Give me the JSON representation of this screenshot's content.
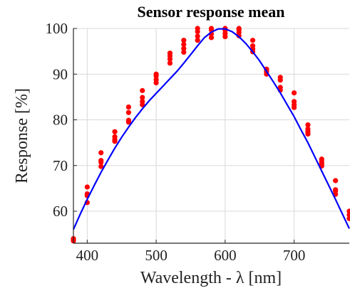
{
  "chart_data": {
    "type": "scatter",
    "title": "Sensor response mean",
    "xlabel": "Wavelength - λ [nm]",
    "ylabel": "Response [%]",
    "xlim": [
      380,
      780
    ],
    "ylim": [
      53,
      100
    ],
    "x_ticks": [
      400,
      500,
      600,
      700
    ],
    "y_ticks": [
      60,
      70,
      80,
      90,
      100
    ],
    "grid": true,
    "colors": {
      "points": "#ff0000",
      "fit": "#0000ff",
      "grid": "#d9d9d9",
      "axis": "#262626"
    },
    "series": [
      {
        "type": "scatter",
        "x": [
          380,
          380,
          380,
          400,
          400,
          400,
          400,
          420,
          420,
          420,
          420,
          440,
          440,
          440,
          440,
          460,
          460,
          460,
          460,
          480,
          480,
          480,
          480,
          500,
          500,
          500,
          500,
          520,
          520,
          520,
          520,
          540,
          540,
          540,
          540,
          560,
          560,
          560,
          560,
          580,
          580,
          580,
          580,
          600,
          600,
          600,
          600,
          620,
          620,
          620,
          620,
          640,
          640,
          640,
          640,
          660,
          660,
          660,
          660,
          680,
          680,
          680,
          680,
          700,
          700,
          700,
          700,
          720,
          720,
          720,
          720,
          740,
          740,
          740,
          740,
          760,
          760,
          760,
          760,
          780,
          780,
          780
        ],
        "y": [
          53.5,
          53.8,
          54.0,
          61.9,
          63.4,
          63.8,
          65.3,
          69.8,
          70.7,
          71.1,
          72.8,
          75.3,
          75.7,
          76.3,
          77.4,
          79.5,
          79.9,
          81.6,
          82.8,
          83.3,
          84.0,
          84.9,
          86.4,
          88.1,
          88.8,
          89.6,
          90.0,
          92.4,
          93.3,
          94.0,
          94.6,
          94.8,
          95.6,
          96.5,
          97.4,
          97.4,
          98.3,
          99.3,
          100.0,
          98.0,
          98.8,
          99.7,
          100.0,
          98.2,
          98.9,
          99.6,
          100.0,
          98.4,
          99.1,
          99.7,
          100.0,
          94.9,
          95.5,
          96.2,
          97.4,
          90.0,
          90.5,
          90.9,
          91.1,
          86.5,
          87.1,
          88.7,
          89.3,
          82.7,
          83.3,
          84.0,
          85.9,
          76.9,
          77.4,
          78.0,
          78.9,
          69.9,
          70.4,
          70.9,
          71.4,
          63.7,
          64.4,
          64.7,
          66.7,
          58.4,
          59.2,
          60.0
        ]
      },
      {
        "type": "line",
        "x": [
          380,
          390,
          400,
          410,
          420,
          430,
          440,
          450,
          460,
          470,
          480,
          490,
          500,
          510,
          520,
          530,
          540,
          550,
          560,
          570,
          580,
          590,
          600,
          610,
          620,
          630,
          640,
          650,
          660,
          670,
          680,
          690,
          700,
          710,
          720,
          730,
          740,
          750,
          760,
          770,
          780
        ],
        "y": [
          56.0,
          59.4,
          62.6,
          65.6,
          68.5,
          71.2,
          73.8,
          76.2,
          78.4,
          80.5,
          82.4,
          84.2,
          85.8,
          87.4,
          89.0,
          90.6,
          92.4,
          94.3,
          96.2,
          98.0,
          99.2,
          99.9,
          99.9,
          99.3,
          98.2,
          96.7,
          94.9,
          92.9,
          90.6,
          88.3,
          85.9,
          83.3,
          80.7,
          77.8,
          75.0,
          71.9,
          68.8,
          65.7,
          62.6,
          59.4,
          56.2
        ]
      }
    ]
  }
}
